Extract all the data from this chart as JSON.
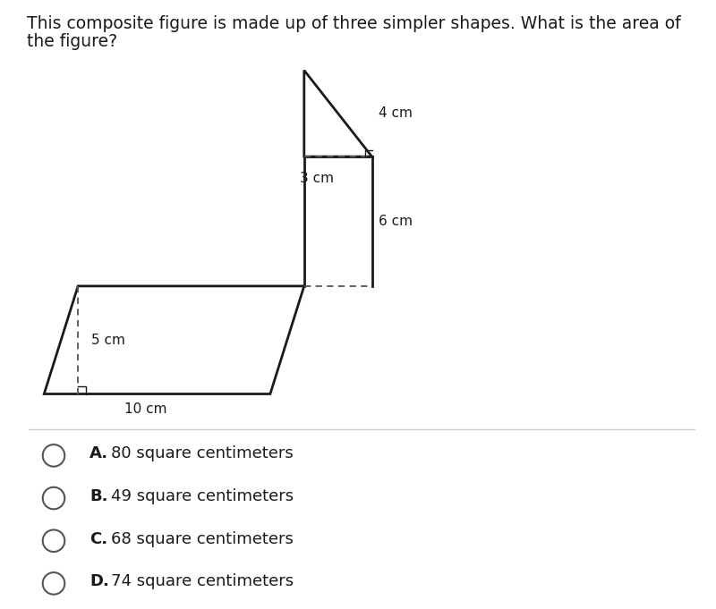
{
  "title_line1": "This composite figure is made up of three simpler shapes. What is the area of",
  "title_line2": "the figure?",
  "title_fontsize": 13.5,
  "bg_color": "#ffffff",
  "shape_color": "#1a1a1a",
  "shape_linewidth": 2.0,
  "dashed_color": "#555555",
  "dashed_linewidth": 1.3,
  "label_4cm": "4 cm",
  "label_3cm": "3 cm",
  "label_6cm": "6 cm",
  "label_5cm": "5 cm",
  "label_10cm": "10 cm",
  "answer_options": [
    {
      "letter": "A",
      "text": "80 square centimeters"
    },
    {
      "letter": "B",
      "text": "49 square centimeters"
    },
    {
      "letter": "C",
      "text": "68 square centimeters"
    },
    {
      "letter": "D",
      "text": "74 square centimeters"
    }
  ],
  "answer_fontsize": 13,
  "label_fontsize": 11,
  "separator_color": "#cccccc"
}
